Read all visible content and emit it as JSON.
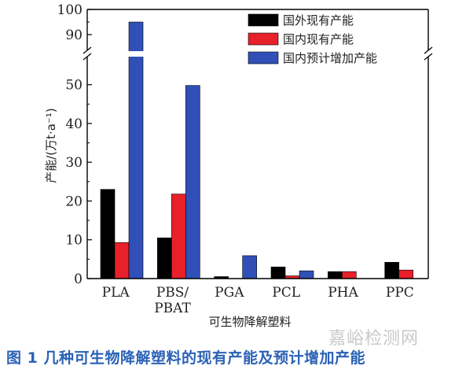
{
  "chart_data": {
    "type": "bar",
    "categories": [
      "PLA",
      "PBS/\nPBAT",
      "PGA",
      "PCL",
      "PHA",
      "PPC"
    ],
    "series": [
      {
        "name": "国外现有产能",
        "color": "#000000",
        "values": [
          23.0,
          10.5,
          0.5,
          3.0,
          1.8,
          4.2
        ]
      },
      {
        "name": "国内现有产能",
        "color": "#e8202a",
        "values": [
          9.3,
          21.8,
          0,
          0.7,
          1.8,
          2.2
        ]
      },
      {
        "name": "国内预计增加产能",
        "color": "#3050b8",
        "values": [
          95.0,
          49.8,
          5.9,
          2.0,
          0,
          0
        ]
      }
    ],
    "ylabel": "产能/(万t·a⁻¹)",
    "xlabel": "可生物降解塑料",
    "y_lower": {
      "min": 0,
      "max": 55,
      "ticks": [
        0,
        10,
        20,
        30,
        40,
        50
      ]
    },
    "y_upper": {
      "min": 85,
      "max": 100,
      "ticks": [
        90,
        100
      ]
    },
    "axis_break": true,
    "legend_position": "top-right"
  },
  "caption": "图 1   几种可生物降解塑料的现有产能及预计增加产能",
  "watermark": "嘉峪检测网"
}
